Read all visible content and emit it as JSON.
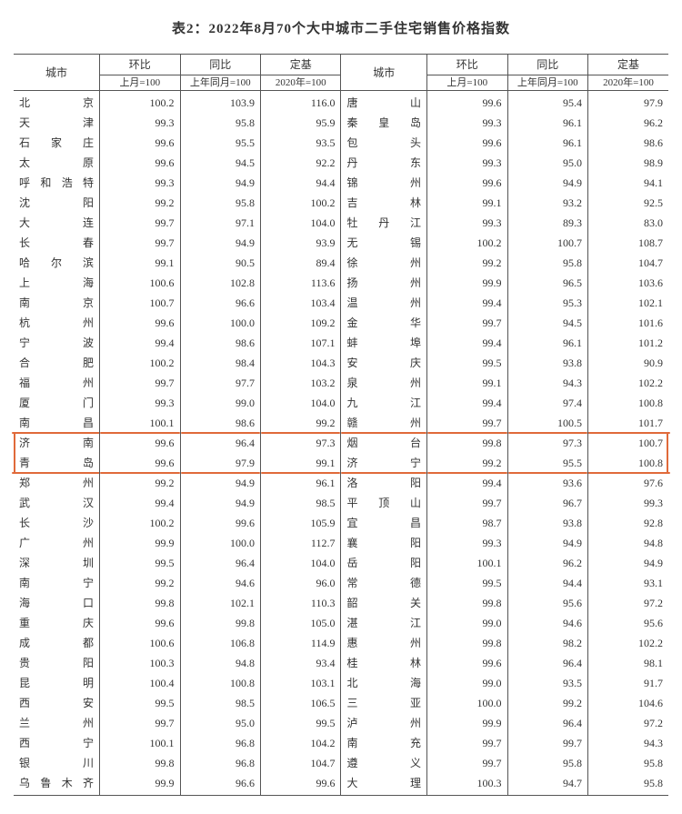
{
  "title": "表2：2022年8月70个大中城市二手住宅销售价格指数",
  "headers": {
    "city": "城市",
    "mom": "环比",
    "yoy": "同比",
    "base": "定基",
    "mom_sub": "上月=100",
    "yoy_sub": "上年同月=100",
    "base_sub": "2020年=100"
  },
  "highlight_color": "#e06a3a",
  "highlight_rows": [
    17,
    18
  ],
  "rows": [
    {
      "c1": "北　　京",
      "v1": "100.2",
      "v2": "103.9",
      "v3": "116.0",
      "c2": "唐　　山",
      "v4": "99.6",
      "v5": "95.4",
      "v6": "97.9"
    },
    {
      "c1": "天　　津",
      "v1": "99.3",
      "v2": "95.8",
      "v3": "95.9",
      "c2": "秦 皇 岛",
      "v4": "99.3",
      "v5": "96.1",
      "v6": "96.2"
    },
    {
      "c1": "石 家 庄",
      "v1": "99.6",
      "v2": "95.5",
      "v3": "93.5",
      "c2": "包　　头",
      "v4": "99.6",
      "v5": "96.1",
      "v6": "98.6"
    },
    {
      "c1": "太　　原",
      "v1": "99.6",
      "v2": "94.5",
      "v3": "92.2",
      "c2": "丹　　东",
      "v4": "99.3",
      "v5": "95.0",
      "v6": "98.9"
    },
    {
      "c1": "呼和浩特",
      "v1": "99.3",
      "v2": "94.9",
      "v3": "94.4",
      "c2": "锦　　州",
      "v4": "99.6",
      "v5": "94.9",
      "v6": "94.1"
    },
    {
      "c1": "沈　　阳",
      "v1": "99.2",
      "v2": "95.8",
      "v3": "100.2",
      "c2": "吉　　林",
      "v4": "99.1",
      "v5": "93.2",
      "v6": "92.5"
    },
    {
      "c1": "大　　连",
      "v1": "99.7",
      "v2": "97.1",
      "v3": "104.0",
      "c2": "牡 丹 江",
      "v4": "99.3",
      "v5": "89.3",
      "v6": "83.0"
    },
    {
      "c1": "长　　春",
      "v1": "99.7",
      "v2": "94.9",
      "v3": "93.9",
      "c2": "无　　锡",
      "v4": "100.2",
      "v5": "100.7",
      "v6": "108.7"
    },
    {
      "c1": "哈 尔 滨",
      "v1": "99.1",
      "v2": "90.5",
      "v3": "89.4",
      "c2": "徐　　州",
      "v4": "99.2",
      "v5": "95.8",
      "v6": "104.7"
    },
    {
      "c1": "上　　海",
      "v1": "100.6",
      "v2": "102.8",
      "v3": "113.6",
      "c2": "扬　　州",
      "v4": "99.9",
      "v5": "96.5",
      "v6": "103.6"
    },
    {
      "c1": "南　　京",
      "v1": "100.7",
      "v2": "96.6",
      "v3": "103.4",
      "c2": "温　　州",
      "v4": "99.4",
      "v5": "95.3",
      "v6": "102.1"
    },
    {
      "c1": "杭　　州",
      "v1": "99.6",
      "v2": "100.0",
      "v3": "109.2",
      "c2": "金　　华",
      "v4": "99.7",
      "v5": "94.5",
      "v6": "101.6"
    },
    {
      "c1": "宁　　波",
      "v1": "99.4",
      "v2": "98.6",
      "v3": "107.1",
      "c2": "蚌　　埠",
      "v4": "99.4",
      "v5": "96.1",
      "v6": "101.2"
    },
    {
      "c1": "合　　肥",
      "v1": "100.2",
      "v2": "98.4",
      "v3": "104.3",
      "c2": "安　　庆",
      "v4": "99.5",
      "v5": "93.8",
      "v6": "90.9"
    },
    {
      "c1": "福　　州",
      "v1": "99.7",
      "v2": "97.7",
      "v3": "103.2",
      "c2": "泉　　州",
      "v4": "99.1",
      "v5": "94.3",
      "v6": "102.2"
    },
    {
      "c1": "厦　　门",
      "v1": "99.3",
      "v2": "99.0",
      "v3": "104.0",
      "c2": "九　　江",
      "v4": "99.4",
      "v5": "97.4",
      "v6": "100.8"
    },
    {
      "c1": "南　　昌",
      "v1": "100.1",
      "v2": "98.6",
      "v3": "99.2",
      "c2": "赣　　州",
      "v4": "99.7",
      "v5": "100.5",
      "v6": "101.7"
    },
    {
      "c1": "济　　南",
      "v1": "99.6",
      "v2": "96.4",
      "v3": "97.3",
      "c2": "烟　　台",
      "v4": "99.8",
      "v5": "97.3",
      "v6": "100.7"
    },
    {
      "c1": "青　　岛",
      "v1": "99.6",
      "v2": "97.9",
      "v3": "99.1",
      "c2": "济　　宁",
      "v4": "99.2",
      "v5": "95.5",
      "v6": "100.8"
    },
    {
      "c1": "郑　　州",
      "v1": "99.2",
      "v2": "94.9",
      "v3": "96.1",
      "c2": "洛　　阳",
      "v4": "99.4",
      "v5": "93.6",
      "v6": "97.6"
    },
    {
      "c1": "武　　汉",
      "v1": "99.4",
      "v2": "94.9",
      "v3": "98.5",
      "c2": "平 顶 山",
      "v4": "99.7",
      "v5": "96.7",
      "v6": "99.3"
    },
    {
      "c1": "长　　沙",
      "v1": "100.2",
      "v2": "99.6",
      "v3": "105.9",
      "c2": "宜　　昌",
      "v4": "98.7",
      "v5": "93.8",
      "v6": "92.8"
    },
    {
      "c1": "广　　州",
      "v1": "99.9",
      "v2": "100.0",
      "v3": "112.7",
      "c2": "襄　　阳",
      "v4": "99.3",
      "v5": "94.9",
      "v6": "94.8"
    },
    {
      "c1": "深　　圳",
      "v1": "99.5",
      "v2": "96.4",
      "v3": "104.0",
      "c2": "岳　　阳",
      "v4": "100.1",
      "v5": "96.2",
      "v6": "94.9"
    },
    {
      "c1": "南　　宁",
      "v1": "99.2",
      "v2": "94.6",
      "v3": "96.0",
      "c2": "常　　德",
      "v4": "99.5",
      "v5": "94.4",
      "v6": "93.1"
    },
    {
      "c1": "海　　口",
      "v1": "99.8",
      "v2": "102.1",
      "v3": "110.3",
      "c2": "韶　　关",
      "v4": "99.8",
      "v5": "95.6",
      "v6": "97.2"
    },
    {
      "c1": "重　　庆",
      "v1": "99.6",
      "v2": "99.8",
      "v3": "105.0",
      "c2": "湛　　江",
      "v4": "99.0",
      "v5": "94.6",
      "v6": "95.6"
    },
    {
      "c1": "成　　都",
      "v1": "100.6",
      "v2": "106.8",
      "v3": "114.9",
      "c2": "惠　　州",
      "v4": "99.8",
      "v5": "98.2",
      "v6": "102.2"
    },
    {
      "c1": "贵　　阳",
      "v1": "100.3",
      "v2": "94.8",
      "v3": "93.4",
      "c2": "桂　　林",
      "v4": "99.6",
      "v5": "96.4",
      "v6": "98.1"
    },
    {
      "c1": "昆　　明",
      "v1": "100.4",
      "v2": "100.8",
      "v3": "103.1",
      "c2": "北　　海",
      "v4": "99.0",
      "v5": "93.5",
      "v6": "91.7"
    },
    {
      "c1": "西　　安",
      "v1": "99.5",
      "v2": "98.5",
      "v3": "106.5",
      "c2": "三　　亚",
      "v4": "100.0",
      "v5": "99.2",
      "v6": "104.6"
    },
    {
      "c1": "兰　　州",
      "v1": "99.7",
      "v2": "95.0",
      "v3": "99.5",
      "c2": "泸　　州",
      "v4": "99.9",
      "v5": "96.4",
      "v6": "97.2"
    },
    {
      "c1": "西　　宁",
      "v1": "100.1",
      "v2": "96.8",
      "v3": "104.2",
      "c2": "南　　充",
      "v4": "99.7",
      "v5": "99.7",
      "v6": "94.3"
    },
    {
      "c1": "银　　川",
      "v1": "99.8",
      "v2": "96.8",
      "v3": "104.7",
      "c2": "遵　　义",
      "v4": "99.7",
      "v5": "95.8",
      "v6": "95.8"
    },
    {
      "c1": "乌鲁木齐",
      "v1": "99.9",
      "v2": "96.6",
      "v3": "99.6",
      "c2": "大　　理",
      "v4": "100.3",
      "v5": "94.7",
      "v6": "95.8"
    }
  ]
}
